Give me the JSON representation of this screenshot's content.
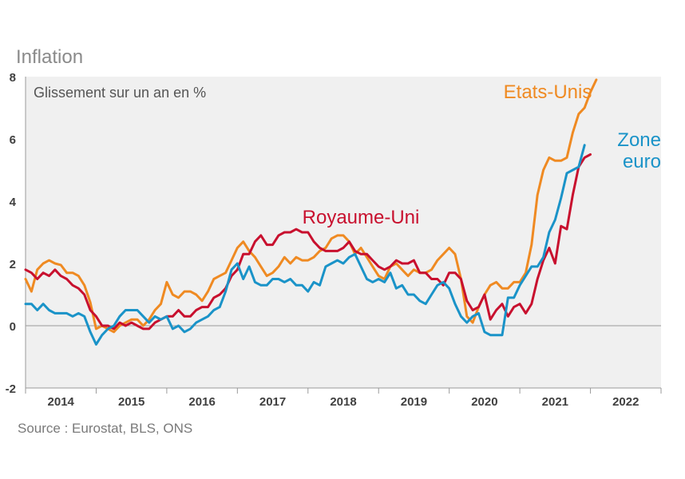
{
  "title": "Inflation",
  "source": "Source : Eurostat, BLS, ONS",
  "chart_data": {
    "type": "line",
    "subtitle": "Glissement sur un an en %",
    "ylim": [
      -2,
      8
    ],
    "yticks": [
      "-2",
      "0",
      "2",
      "4",
      "6",
      "8"
    ],
    "xlim": [
      2013.5,
      2022.5
    ],
    "xticks": [
      "2014",
      "2015",
      "2016",
      "2017",
      "2018",
      "2019",
      "2020",
      "2021",
      "2022"
    ],
    "grid": false,
    "colors": {
      "us": "#ef8a22",
      "uk": "#c8102e",
      "ez": "#1a93c8",
      "axis": "#9a9a9a",
      "tick": "#404040",
      "bg": "#f0f0f0"
    },
    "series": [
      {
        "key": "us",
        "name": "Etats-Unis",
        "label_lines": [
          "Etats-Unis"
        ],
        "x_start": 2013.5,
        "x_step": 0.08333,
        "values": [
          1.5,
          1.1,
          1.8,
          2.0,
          2.1,
          2.0,
          1.95,
          1.7,
          1.7,
          1.6,
          1.3,
          0.75,
          -0.1,
          0.0,
          -0.1,
          -0.2,
          0.0,
          0.1,
          0.2,
          0.2,
          0.0,
          0.2,
          0.5,
          0.7,
          1.4,
          1.0,
          0.9,
          1.1,
          1.1,
          1.0,
          0.8,
          1.1,
          1.5,
          1.6,
          1.7,
          2.1,
          2.5,
          2.7,
          2.4,
          2.2,
          1.9,
          1.6,
          1.7,
          1.9,
          2.2,
          2.0,
          2.2,
          2.1,
          2.1,
          2.2,
          2.4,
          2.5,
          2.8,
          2.9,
          2.9,
          2.7,
          2.3,
          2.5,
          2.2,
          1.9,
          1.6,
          1.5,
          1.9,
          2.0,
          1.8,
          1.6,
          1.8,
          1.7,
          1.7,
          1.8,
          2.1,
          2.3,
          2.5,
          2.3,
          1.5,
          0.3,
          0.1,
          0.6,
          1.0,
          1.3,
          1.4,
          1.2,
          1.2,
          1.4,
          1.4,
          1.7,
          2.6,
          4.2,
          5.0,
          5.4,
          5.3,
          5.3,
          5.4,
          6.2,
          6.8,
          7.0,
          7.5,
          7.9
        ],
        "label_color": "#ef8a22"
      },
      {
        "key": "uk",
        "name": "Royaume-Uni",
        "label_lines": [
          "Royaume-Uni"
        ],
        "x_start": 2013.5,
        "x_step": 0.08333,
        "values": [
          1.8,
          1.7,
          1.5,
          1.7,
          1.6,
          1.8,
          1.6,
          1.5,
          1.3,
          1.2,
          1.0,
          0.5,
          0.3,
          0.0,
          0.0,
          -0.1,
          0.1,
          0.0,
          0.1,
          0.0,
          -0.1,
          -0.1,
          0.1,
          0.2,
          0.3,
          0.3,
          0.5,
          0.3,
          0.3,
          0.5,
          0.6,
          0.6,
          0.9,
          1.0,
          1.2,
          1.6,
          1.8,
          2.3,
          2.3,
          2.7,
          2.9,
          2.6,
          2.6,
          2.9,
          3.0,
          3.0,
          3.1,
          3.0,
          3.0,
          2.7,
          2.5,
          2.4,
          2.4,
          2.4,
          2.5,
          2.7,
          2.4,
          2.3,
          2.3,
          2.1,
          1.9,
          1.8,
          1.9,
          2.1,
          2.0,
          2.0,
          2.1,
          1.7,
          1.7,
          1.5,
          1.5,
          1.3,
          1.7,
          1.7,
          1.5,
          0.8,
          0.5,
          0.6,
          1.0,
          0.2,
          0.5,
          0.7,
          0.3,
          0.6,
          0.7,
          0.4,
          0.7,
          1.5,
          2.1,
          2.5,
          2.0,
          3.2,
          3.1,
          4.2,
          5.1,
          5.4,
          5.5
        ],
        "label_color": "#c8102e"
      },
      {
        "key": "ez",
        "name": "Zone euro",
        "label_lines": [
          "Zone",
          "euro"
        ],
        "x_start": 2013.5,
        "x_step": 0.08333,
        "values": [
          0.7,
          0.7,
          0.5,
          0.7,
          0.5,
          0.4,
          0.4,
          0.4,
          0.3,
          0.4,
          0.3,
          -0.2,
          -0.6,
          -0.3,
          -0.1,
          0.0,
          0.3,
          0.5,
          0.5,
          0.5,
          0.3,
          0.1,
          0.3,
          0.2,
          0.3,
          -0.1,
          0.0,
          -0.2,
          -0.1,
          0.1,
          0.2,
          0.3,
          0.5,
          0.6,
          1.1,
          1.8,
          2.0,
          1.5,
          1.9,
          1.4,
          1.3,
          1.3,
          1.5,
          1.5,
          1.4,
          1.5,
          1.3,
          1.3,
          1.1,
          1.4,
          1.3,
          1.9,
          2.0,
          2.1,
          2.0,
          2.2,
          2.3,
          1.9,
          1.5,
          1.4,
          1.5,
          1.4,
          1.7,
          1.2,
          1.3,
          1.0,
          1.0,
          0.8,
          0.7,
          1.0,
          1.3,
          1.4,
          1.2,
          0.7,
          0.3,
          0.1,
          0.3,
          0.4,
          -0.2,
          -0.3,
          -0.3,
          -0.3,
          0.9,
          0.9,
          1.3,
          1.6,
          1.9,
          1.9,
          2.2,
          3.0,
          3.4,
          4.1,
          4.9,
          5.0,
          5.1,
          5.8
        ],
        "label_color": "#1a93c8"
      }
    ]
  }
}
